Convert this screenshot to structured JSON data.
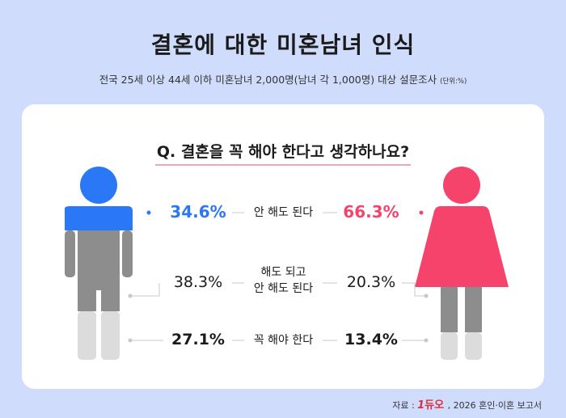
{
  "title": "결혼에 대한 미혼남녀 인식",
  "subtitle": "전국 25세 이상 44세 이하 미혼남녀 2,000명(남녀 각 1,000명) 대상 설문조사",
  "unit_note": "(단위:%)",
  "question": "Q. 결혼을 꼭 해야 한다고 생각하나요?",
  "source_prefix": "자료 :",
  "source_logo": "듀오",
  "source_suffix": ", 2026 혼인·이혼 보고서",
  "colors": {
    "male": "#2a78f5",
    "female": "#f5436b",
    "mid_gray": "#8d8d8d",
    "light_gray": "#dcdcdc"
  },
  "chart_data": {
    "type": "table",
    "categories": [
      "안 해도 된다",
      "해도 되고\n안 해도 된다",
      "꼭 해야 한다"
    ],
    "series": [
      {
        "name": "남성",
        "values": [
          34.6,
          38.3,
          27.1
        ]
      },
      {
        "name": "여성",
        "values": [
          66.3,
          20.3,
          13.4
        ]
      }
    ]
  },
  "rows": [
    {
      "male": "34.6%",
      "label": "안 해도 된다",
      "female": "66.3%"
    },
    {
      "male": "38.3%",
      "label_line1": "해도 되고",
      "label_line2": "안 해도 된다",
      "female": "20.3%"
    },
    {
      "male": "27.1%",
      "label": "꼭 해야 한다",
      "female": "13.4%"
    }
  ]
}
